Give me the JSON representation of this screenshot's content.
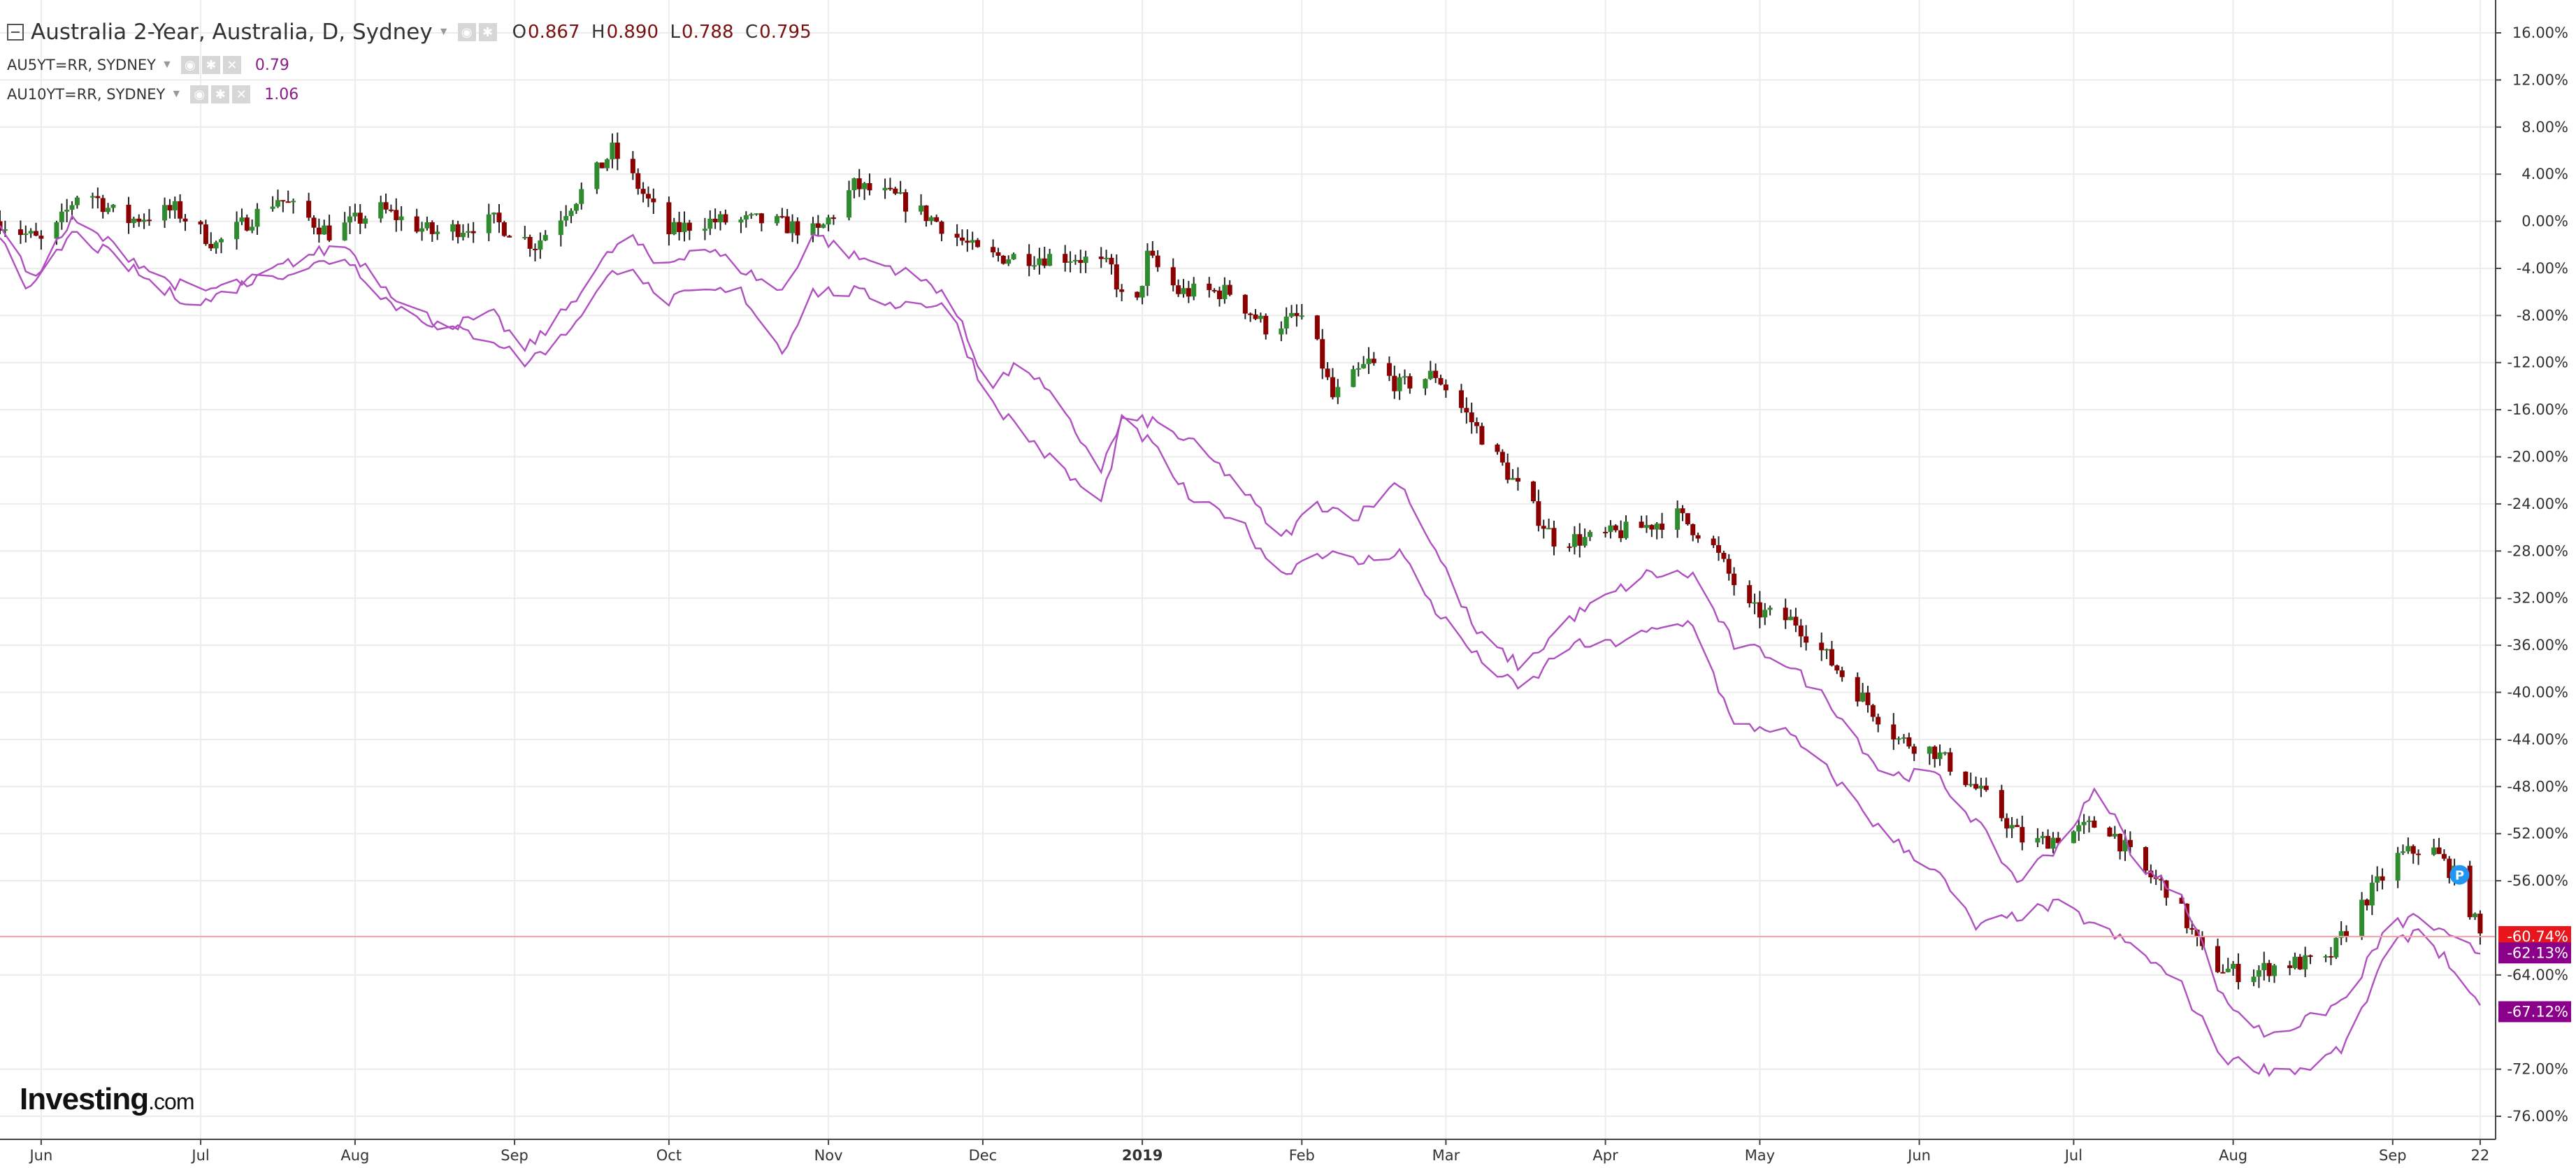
{
  "header": {
    "title": "Australia 2-Year, Australia, D, Sydney",
    "ohlc": {
      "o_label": "O",
      "o": "0.867",
      "h_label": "H",
      "h": "0.890",
      "l_label": "L",
      "l": "0.788",
      "c_label": "C",
      "c": "0.795"
    },
    "series": [
      {
        "name": "AU5YT=RR, SYDNEY",
        "value": "0.79"
      },
      {
        "name": "AU10YT=RR, SYDNEY",
        "value": "1.06"
      }
    ]
  },
  "logo": {
    "brand": "Investing",
    "suffix": ".com"
  },
  "colors": {
    "up": "#2e8b2e",
    "down": "#8b0000",
    "line": "#b050c0",
    "last_main": "#e8161b",
    "last_series": "#8b008b",
    "marker": "#2196f3"
  },
  "chart_data": {
    "type": "line",
    "y_unit": "%",
    "ylim": [
      -78,
      18
    ],
    "y_ticks": [
      "16.00%",
      "12.00%",
      "8.00%",
      "4.00%",
      "0.00%",
      "-4.00%",
      "-8.00%",
      "-12.00%",
      "-16.00%",
      "-20.00%",
      "-24.00%",
      "-28.00%",
      "-32.00%",
      "-36.00%",
      "-40.00%",
      "-44.00%",
      "-48.00%",
      "-52.00%",
      "-56.00%",
      "-64.00%",
      "-72.00%",
      "-76.00%"
    ],
    "y_tick_values": [
      16,
      12,
      8,
      4,
      0,
      -4,
      -8,
      -12,
      -16,
      -20,
      -24,
      -28,
      -32,
      -36,
      -40,
      -44,
      -48,
      -52,
      -56,
      -64,
      -72,
      -76
    ],
    "x_labels": [
      "Jun",
      "Jul",
      "Aug",
      "Sep",
      "Oct",
      "Nov",
      "Dec",
      "2019",
      "Feb",
      "Mar",
      "Apr",
      "May",
      "Jun",
      "Jul",
      "Aug",
      "Sep",
      "22"
    ],
    "x_bold": [
      false,
      false,
      false,
      false,
      false,
      false,
      false,
      true,
      false,
      false,
      false,
      false,
      false,
      false,
      false,
      false,
      false
    ],
    "x_label_days": [
      4,
      35,
      65,
      96,
      126,
      157,
      187,
      218,
      249,
      277,
      308,
      338,
      369,
      399,
      430,
      461,
      478
    ],
    "x_range_days": [
      -4,
      481
    ],
    "last_values": [
      {
        "label": "-60.74%",
        "value": -60.74,
        "color": "#e8161b"
      },
      {
        "label": "-62.13%",
        "value": -62.13,
        "color": "#8b008b"
      },
      {
        "label": "-67.12%",
        "value": -67.12,
        "color": "#8b008b"
      }
    ],
    "marker": {
      "label": "P",
      "day": 474,
      "value": -55.5
    },
    "candle_keypoints": [
      [
        -4,
        0
      ],
      [
        5,
        -2
      ],
      [
        12,
        3
      ],
      [
        20,
        0
      ],
      [
        30,
        1
      ],
      [
        38,
        -2
      ],
      [
        50,
        2
      ],
      [
        60,
        -1
      ],
      [
        70,
        1
      ],
      [
        80,
        -1
      ],
      [
        92,
        0
      ],
      [
        100,
        -2
      ],
      [
        110,
        3
      ],
      [
        115,
        6
      ],
      [
        120,
        3
      ],
      [
        126,
        -1
      ],
      [
        132,
        0
      ],
      [
        145,
        0
      ],
      [
        155,
        -1
      ],
      [
        162,
        3
      ],
      [
        170,
        2
      ],
      [
        178,
        0
      ],
      [
        187,
        -3
      ],
      [
        195,
        -3
      ],
      [
        205,
        -3
      ],
      [
        212,
        -4
      ],
      [
        216,
        -9
      ],
      [
        219,
        -3
      ],
      [
        225,
        -6
      ],
      [
        235,
        -6
      ],
      [
        242,
        -9
      ],
      [
        250,
        -8
      ],
      [
        255,
        -15
      ],
      [
        262,
        -12
      ],
      [
        268,
        -14
      ],
      [
        275,
        -13
      ],
      [
        282,
        -17
      ],
      [
        290,
        -22
      ],
      [
        298,
        -27
      ],
      [
        305,
        -27
      ],
      [
        315,
        -26
      ],
      [
        322,
        -25
      ],
      [
        328,
        -27
      ],
      [
        336,
        -33
      ],
      [
        345,
        -34
      ],
      [
        355,
        -39
      ],
      [
        365,
        -44
      ],
      [
        372,
        -45
      ],
      [
        382,
        -49
      ],
      [
        390,
        -53
      ],
      [
        398,
        -52
      ],
      [
        405,
        -51
      ],
      [
        412,
        -55
      ],
      [
        418,
        -57
      ],
      [
        425,
        -63
      ],
      [
        432,
        -64
      ],
      [
        440,
        -63
      ],
      [
        448,
        -63
      ],
      [
        455,
        -58
      ],
      [
        462,
        -54
      ],
      [
        468,
        -53
      ],
      [
        474,
        -56
      ],
      [
        478,
        -60.7
      ]
    ],
    "series": [
      {
        "name": "AU5YT=RR, SYDNEY",
        "keypoints": [
          [
            -4,
            0
          ],
          [
            2,
            -5
          ],
          [
            10,
            0
          ],
          [
            18,
            -2
          ],
          [
            28,
            -5
          ],
          [
            35,
            -6
          ],
          [
            45,
            -5
          ],
          [
            55,
            -3
          ],
          [
            63,
            -2
          ],
          [
            72,
            -6
          ],
          [
            82,
            -9
          ],
          [
            92,
            -8
          ],
          [
            98,
            -11
          ],
          [
            105,
            -8
          ],
          [
            112,
            -4
          ],
          [
            118,
            -1
          ],
          [
            124,
            -4
          ],
          [
            132,
            -2
          ],
          [
            140,
            -4
          ],
          [
            148,
            -6
          ],
          [
            154,
            -1
          ],
          [
            162,
            -3
          ],
          [
            170,
            -4
          ],
          [
            180,
            -6
          ],
          [
            188,
            -14
          ],
          [
            195,
            -12
          ],
          [
            202,
            -16
          ],
          [
            210,
            -21
          ],
          [
            214,
            -17
          ],
          [
            220,
            -17
          ],
          [
            228,
            -19
          ],
          [
            236,
            -22
          ],
          [
            245,
            -27
          ],
          [
            252,
            -24
          ],
          [
            260,
            -25
          ],
          [
            268,
            -22
          ],
          [
            275,
            -28
          ],
          [
            283,
            -35
          ],
          [
            292,
            -38
          ],
          [
            300,
            -34
          ],
          [
            308,
            -32
          ],
          [
            316,
            -30
          ],
          [
            325,
            -30
          ],
          [
            333,
            -36
          ],
          [
            342,
            -37
          ],
          [
            352,
            -41
          ],
          [
            362,
            -47
          ],
          [
            372,
            -47
          ],
          [
            380,
            -51
          ],
          [
            388,
            -56
          ],
          [
            396,
            -53
          ],
          [
            404,
            -48
          ],
          [
            412,
            -55
          ],
          [
            420,
            -57
          ],
          [
            428,
            -66
          ],
          [
            436,
            -69
          ],
          [
            444,
            -68
          ],
          [
            452,
            -66
          ],
          [
            460,
            -60
          ],
          [
            466,
            -59
          ],
          [
            472,
            -61
          ],
          [
            478,
            -62.1
          ]
        ]
      },
      {
        "name": "AU10YT=RR, SYDNEY",
        "keypoints": [
          [
            -4,
            -1
          ],
          [
            2,
            -6
          ],
          [
            10,
            -1
          ],
          [
            18,
            -3
          ],
          [
            28,
            -6
          ],
          [
            35,
            -7
          ],
          [
            45,
            -5
          ],
          [
            55,
            -4
          ],
          [
            63,
            -3
          ],
          [
            72,
            -7
          ],
          [
            82,
            -9
          ],
          [
            92,
            -10
          ],
          [
            98,
            -12
          ],
          [
            105,
            -10
          ],
          [
            112,
            -6
          ],
          [
            118,
            -3
          ],
          [
            124,
            -7
          ],
          [
            132,
            -6
          ],
          [
            140,
            -6
          ],
          [
            148,
            -11
          ],
          [
            154,
            -6
          ],
          [
            162,
            -6
          ],
          [
            170,
            -7
          ],
          [
            180,
            -7
          ],
          [
            188,
            -15
          ],
          [
            195,
            -18
          ],
          [
            202,
            -21
          ],
          [
            210,
            -24
          ],
          [
            214,
            -17
          ],
          [
            220,
            -19
          ],
          [
            228,
            -24
          ],
          [
            236,
            -25
          ],
          [
            245,
            -30
          ],
          [
            252,
            -28
          ],
          [
            260,
            -29
          ],
          [
            268,
            -28
          ],
          [
            275,
            -33
          ],
          [
            283,
            -37
          ],
          [
            292,
            -40
          ],
          [
            300,
            -36
          ],
          [
            308,
            -36
          ],
          [
            316,
            -35
          ],
          [
            325,
            -34
          ],
          [
            333,
            -43
          ],
          [
            342,
            -43
          ],
          [
            352,
            -47
          ],
          [
            362,
            -52
          ],
          [
            372,
            -55
          ],
          [
            380,
            -60
          ],
          [
            388,
            -59
          ],
          [
            396,
            -58
          ],
          [
            404,
            -60
          ],
          [
            412,
            -62
          ],
          [
            420,
            -65
          ],
          [
            428,
            -71
          ],
          [
            436,
            -72
          ],
          [
            444,
            -72
          ],
          [
            452,
            -70
          ],
          [
            460,
            -62
          ],
          [
            466,
            -60
          ],
          [
            472,
            -63
          ],
          [
            478,
            -67.1
          ]
        ]
      }
    ]
  }
}
